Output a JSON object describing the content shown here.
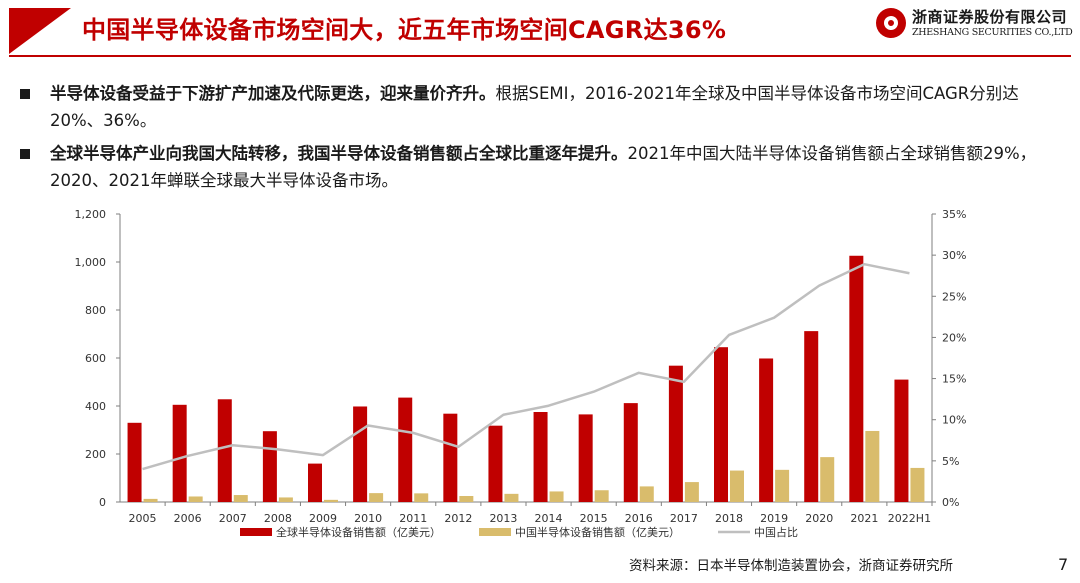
{
  "header": {
    "title": "中国半导体设备市场空间大，近五年市场空间CAGR达36%",
    "brand_cn": "浙商证券股份有限公司",
    "brand_en": "ZHESHANG SECURITIES CO.,LTD",
    "accent_color": "#c00000"
  },
  "bullets": [
    {
      "bold": "半导体设备受益于下游扩产加速及代际更迭，迎来量价齐升。",
      "text": "根据SEMI，2016-2021年全球及中国半导体设备市场空间CAGR分别达20%、36%。"
    },
    {
      "bold": "全球半导体产业向我国大陆转移，我国半导体设备销售额占全球比重逐年提升。",
      "text": "2021年中国大陆半导体设备销售额占全球销售额29%，2020、2021年蝉联全球最大半导体设备市场。"
    }
  ],
  "chart_data": {
    "type": "bar",
    "categories": [
      "2005",
      "2006",
      "2007",
      "2008",
      "2009",
      "2010",
      "2011",
      "2012",
      "2013",
      "2014",
      "2015",
      "2016",
      "2017",
      "2018",
      "2019",
      "2020",
      "2021",
      "2022H1"
    ],
    "y_left_ticks": [
      "0",
      "200",
      "400",
      "600",
      "800",
      "1,000",
      "1,200"
    ],
    "y_right_ticks": [
      "0%",
      "5%",
      "10%",
      "15%",
      "20%",
      "25%",
      "30%",
      "35%"
    ],
    "ylim_left": [
      0,
      1200
    ],
    "ylim_right": [
      0,
      35
    ],
    "grid": false,
    "legend_position": "bottom",
    "series": [
      {
        "name": "全球半导体设备销售额（亿美元）",
        "kind": "bar",
        "axis": "left",
        "color": "#c00000",
        "values": [
          330,
          405,
          428,
          295,
          160,
          398,
          435,
          368,
          318,
          375,
          365,
          412,
          568,
          645,
          598,
          712,
          1026,
          510
        ]
      },
      {
        "name": "中国半导体设备销售额（亿美元）",
        "kind": "bar",
        "axis": "left",
        "color": "#d9bc6c",
        "values": [
          13,
          23,
          29,
          19,
          9,
          37,
          36,
          25,
          34,
          44,
          49,
          65,
          83,
          131,
          134,
          187,
          296,
          142
        ]
      },
      {
        "name": "中国占比",
        "kind": "line",
        "axis": "right",
        "color": "#bfbfbf",
        "values": [
          4.0,
          5.6,
          6.9,
          6.4,
          5.7,
          9.3,
          8.4,
          6.7,
          10.6,
          11.7,
          13.4,
          15.7,
          14.6,
          20.3,
          22.4,
          26.3,
          28.9,
          27.8
        ]
      }
    ]
  },
  "footer": {
    "source": "资料来源：日本半导体制造装置协会，浙商证券研究所",
    "page": "7"
  }
}
